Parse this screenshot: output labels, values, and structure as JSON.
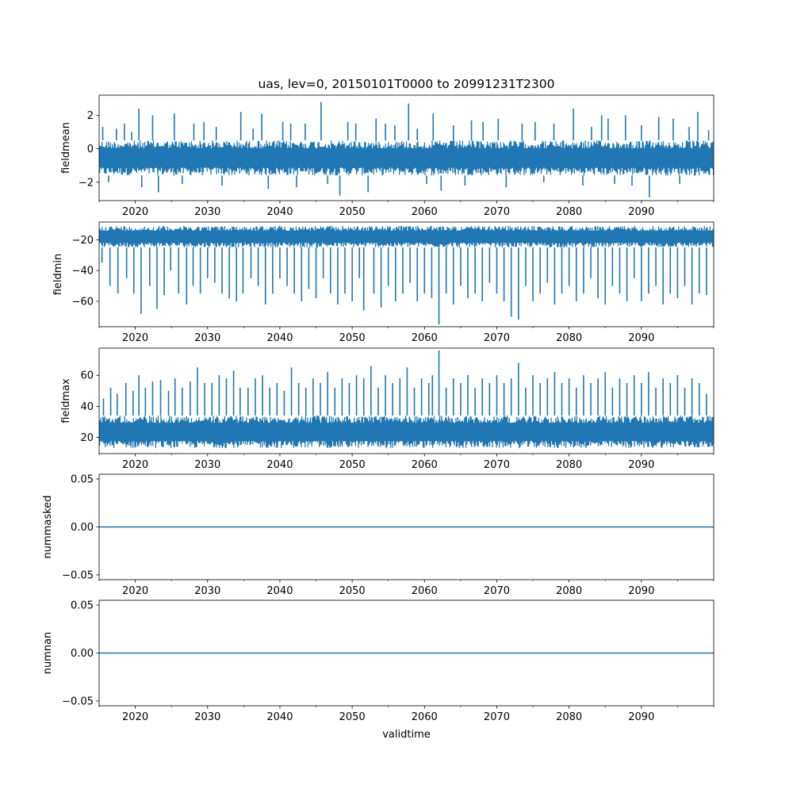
{
  "title": "uas, lev=0, 20150101T0000 to 20991231T2300",
  "xlabel": "validtime",
  "chart_data": [
    {
      "type": "line",
      "name": "fieldmean",
      "ylabel": "fieldmean",
      "xlim": [
        2015.0,
        2100.0
      ],
      "ylim": [
        -3.1,
        3.2
      ],
      "yticks": [
        -2,
        0,
        2
      ],
      "ytick_labels": [
        "−2",
        "0",
        "2"
      ],
      "line_color": "#1f77b4",
      "baseline_band": [
        -1.6,
        0.5
      ],
      "spikes": [
        {
          "x": 2015.5,
          "y": 1.3
        },
        {
          "x": 2016.3,
          "y": -2.0
        },
        {
          "x": 2017.4,
          "y": 1.2
        },
        {
          "x": 2018.5,
          "y": 1.5
        },
        {
          "x": 2019.5,
          "y": 1.0
        },
        {
          "x": 2020.5,
          "y": 2.4
        },
        {
          "x": 2020.9,
          "y": -2.3
        },
        {
          "x": 2022.4,
          "y": 2.0
        },
        {
          "x": 2023.2,
          "y": -2.6
        },
        {
          "x": 2025.4,
          "y": 2.1
        },
        {
          "x": 2026.5,
          "y": -2.1
        },
        {
          "x": 2028.1,
          "y": 1.5
        },
        {
          "x": 2029.5,
          "y": 1.6
        },
        {
          "x": 2031.2,
          "y": 1.3
        },
        {
          "x": 2032.0,
          "y": -2.2
        },
        {
          "x": 2034.6,
          "y": 2.2
        },
        {
          "x": 2036.3,
          "y": 1.2
        },
        {
          "x": 2037.5,
          "y": 2.1
        },
        {
          "x": 2038.4,
          "y": -2.4
        },
        {
          "x": 2040.4,
          "y": 1.6
        },
        {
          "x": 2041.5,
          "y": 1.5
        },
        {
          "x": 2042.3,
          "y": -2.3
        },
        {
          "x": 2043.5,
          "y": 1.5
        },
        {
          "x": 2045.7,
          "y": 2.8
        },
        {
          "x": 2046.6,
          "y": -2.1
        },
        {
          "x": 2048.3,
          "y": -2.8
        },
        {
          "x": 2049.4,
          "y": 1.6
        },
        {
          "x": 2050.5,
          "y": 1.5
        },
        {
          "x": 2052.2,
          "y": -2.6
        },
        {
          "x": 2053.3,
          "y": 1.8
        },
        {
          "x": 2054.6,
          "y": 1.5
        },
        {
          "x": 2055.9,
          "y": 1.4
        },
        {
          "x": 2057.8,
          "y": 2.7
        },
        {
          "x": 2059.0,
          "y": 1.2
        },
        {
          "x": 2060.3,
          "y": -2.1
        },
        {
          "x": 2061.2,
          "y": 2.1
        },
        {
          "x": 2062.3,
          "y": -2.5
        },
        {
          "x": 2064.0,
          "y": 1.4
        },
        {
          "x": 2065.6,
          "y": -2.2
        },
        {
          "x": 2066.5,
          "y": 1.7
        },
        {
          "x": 2068.1,
          "y": 1.6
        },
        {
          "x": 2070.2,
          "y": 1.8
        },
        {
          "x": 2071.3,
          "y": -2.3
        },
        {
          "x": 2073.5,
          "y": 1.5
        },
        {
          "x": 2075.3,
          "y": 1.6
        },
        {
          "x": 2076.5,
          "y": -2.0
        },
        {
          "x": 2077.9,
          "y": 1.5
        },
        {
          "x": 2080.6,
          "y": 2.4
        },
        {
          "x": 2081.9,
          "y": -2.2
        },
        {
          "x": 2083.1,
          "y": 1.3
        },
        {
          "x": 2084.5,
          "y": 2.0
        },
        {
          "x": 2085.4,
          "y": 1.8
        },
        {
          "x": 2086.3,
          "y": -2.1
        },
        {
          "x": 2087.8,
          "y": 2.0
        },
        {
          "x": 2088.7,
          "y": -2.2
        },
        {
          "x": 2090.0,
          "y": 1.4
        },
        {
          "x": 2091.1,
          "y": -2.9
        },
        {
          "x": 2092.4,
          "y": 1.9
        },
        {
          "x": 2094.4,
          "y": 1.8
        },
        {
          "x": 2095.3,
          "y": -2.1
        },
        {
          "x": 2096.6,
          "y": 1.3
        },
        {
          "x": 2097.8,
          "y": 2.2
        },
        {
          "x": 2099.3,
          "y": 1.1
        }
      ]
    },
    {
      "type": "line",
      "name": "fieldmin",
      "ylabel": "fieldmin",
      "xlim": [
        2015.0,
        2100.0
      ],
      "ylim": [
        -76.5,
        -8.5
      ],
      "yticks": [
        -60,
        -40,
        -20
      ],
      "ytick_labels": [
        "−60",
        "−40",
        "−20"
      ],
      "line_color": "#1f77b4",
      "baseline_band": [
        -25.0,
        -11.0
      ],
      "spikes": [
        {
          "x": 2015.4,
          "y": -35
        },
        {
          "x": 2016.5,
          "y": -50
        },
        {
          "x": 2017.6,
          "y": -55
        },
        {
          "x": 2018.8,
          "y": -45
        },
        {
          "x": 2019.8,
          "y": -55
        },
        {
          "x": 2020.8,
          "y": -68
        },
        {
          "x": 2022.0,
          "y": -50
        },
        {
          "x": 2023.0,
          "y": -65
        },
        {
          "x": 2024.0,
          "y": -56
        },
        {
          "x": 2024.9,
          "y": -40
        },
        {
          "x": 2026.0,
          "y": -55
        },
        {
          "x": 2027.1,
          "y": -62
        },
        {
          "x": 2028.0,
          "y": -50
        },
        {
          "x": 2029.0,
          "y": -55
        },
        {
          "x": 2030.0,
          "y": -45
        },
        {
          "x": 2031.0,
          "y": -48
        },
        {
          "x": 2032.0,
          "y": -55
        },
        {
          "x": 2033.0,
          "y": -58
        },
        {
          "x": 2034.0,
          "y": -60
        },
        {
          "x": 2034.9,
          "y": -55
        },
        {
          "x": 2036.0,
          "y": -45
        },
        {
          "x": 2037.0,
          "y": -50
        },
        {
          "x": 2038.0,
          "y": -62
        },
        {
          "x": 2039.0,
          "y": -55
        },
        {
          "x": 2040.0,
          "y": -45
        },
        {
          "x": 2041.0,
          "y": -50
        },
        {
          "x": 2042.0,
          "y": -55
        },
        {
          "x": 2043.0,
          "y": -60
        },
        {
          "x": 2044.0,
          "y": -52
        },
        {
          "x": 2045.0,
          "y": -58
        },
        {
          "x": 2046.0,
          "y": -45
        },
        {
          "x": 2047.0,
          "y": -55
        },
        {
          "x": 2048.0,
          "y": -62
        },
        {
          "x": 2049.0,
          "y": -55
        },
        {
          "x": 2050.0,
          "y": -60
        },
        {
          "x": 2051.0,
          "y": -45
        },
        {
          "x": 2051.6,
          "y": -66
        },
        {
          "x": 2053.0,
          "y": -55
        },
        {
          "x": 2054.0,
          "y": -64
        },
        {
          "x": 2055.0,
          "y": -50
        },
        {
          "x": 2056.0,
          "y": -60
        },
        {
          "x": 2057.0,
          "y": -55
        },
        {
          "x": 2058.0,
          "y": -48
        },
        {
          "x": 2059.0,
          "y": -60
        },
        {
          "x": 2060.0,
          "y": -55
        },
        {
          "x": 2061.0,
          "y": -58
        },
        {
          "x": 2062.0,
          "y": -75
        },
        {
          "x": 2063.0,
          "y": -55
        },
        {
          "x": 2064.0,
          "y": -62
        },
        {
          "x": 2065.0,
          "y": -50
        },
        {
          "x": 2066.0,
          "y": -58
        },
        {
          "x": 2067.0,
          "y": -55
        },
        {
          "x": 2068.0,
          "y": -60
        },
        {
          "x": 2069.0,
          "y": -48
        },
        {
          "x": 2070.0,
          "y": -55
        },
        {
          "x": 2071.0,
          "y": -60
        },
        {
          "x": 2072.0,
          "y": -70
        },
        {
          "x": 2073.0,
          "y": -72
        },
        {
          "x": 2074.0,
          "y": -50
        },
        {
          "x": 2075.0,
          "y": -60
        },
        {
          "x": 2076.0,
          "y": -55
        },
        {
          "x": 2077.0,
          "y": -48
        },
        {
          "x": 2078.0,
          "y": -62
        },
        {
          "x": 2079.0,
          "y": -55
        },
        {
          "x": 2080.0,
          "y": -50
        },
        {
          "x": 2081.0,
          "y": -60
        },
        {
          "x": 2082.0,
          "y": -55
        },
        {
          "x": 2083.0,
          "y": -45
        },
        {
          "x": 2084.0,
          "y": -58
        },
        {
          "x": 2085.0,
          "y": -62
        },
        {
          "x": 2086.0,
          "y": -50
        },
        {
          "x": 2087.0,
          "y": -55
        },
        {
          "x": 2088.0,
          "y": -60
        },
        {
          "x": 2089.0,
          "y": -45
        },
        {
          "x": 2090.0,
          "y": -60
        },
        {
          "x": 2091.0,
          "y": -55
        },
        {
          "x": 2092.0,
          "y": -50
        },
        {
          "x": 2093.0,
          "y": -62
        },
        {
          "x": 2094.0,
          "y": -55
        },
        {
          "x": 2095.0,
          "y": -58
        },
        {
          "x": 2096.0,
          "y": -50
        },
        {
          "x": 2097.0,
          "y": -62
        },
        {
          "x": 2098.0,
          "y": -55
        },
        {
          "x": 2099.0,
          "y": -56
        }
      ]
    },
    {
      "type": "line",
      "name": "fieldmax",
      "ylabel": "fieldmax",
      "xlim": [
        2015.0,
        2100.0
      ],
      "ylim": [
        9.5,
        77.5
      ],
      "yticks": [
        20,
        40,
        60
      ],
      "ytick_labels": [
        "20",
        "40",
        "60"
      ],
      "line_color": "#1f77b4",
      "baseline_band": [
        13.0,
        34.0
      ],
      "spikes": [
        {
          "x": 2015.6,
          "y": 45
        },
        {
          "x": 2016.6,
          "y": 52
        },
        {
          "x": 2017.5,
          "y": 48
        },
        {
          "x": 2018.7,
          "y": 55
        },
        {
          "x": 2019.7,
          "y": 50
        },
        {
          "x": 2020.5,
          "y": 60
        },
        {
          "x": 2021.4,
          "y": 52
        },
        {
          "x": 2022.4,
          "y": 56
        },
        {
          "x": 2023.5,
          "y": 57
        },
        {
          "x": 2024.6,
          "y": 50
        },
        {
          "x": 2025.5,
          "y": 58
        },
        {
          "x": 2026.5,
          "y": 52
        },
        {
          "x": 2027.6,
          "y": 56
        },
        {
          "x": 2028.6,
          "y": 65
        },
        {
          "x": 2029.6,
          "y": 55
        },
        {
          "x": 2030.6,
          "y": 55
        },
        {
          "x": 2031.6,
          "y": 60
        },
        {
          "x": 2032.6,
          "y": 58
        },
        {
          "x": 2033.6,
          "y": 63
        },
        {
          "x": 2034.5,
          "y": 52
        },
        {
          "x": 2035.6,
          "y": 52
        },
        {
          "x": 2036.6,
          "y": 58
        },
        {
          "x": 2037.6,
          "y": 60
        },
        {
          "x": 2038.6,
          "y": 52
        },
        {
          "x": 2039.6,
          "y": 55
        },
        {
          "x": 2040.6,
          "y": 50
        },
        {
          "x": 2041.6,
          "y": 65
        },
        {
          "x": 2042.6,
          "y": 55
        },
        {
          "x": 2043.6,
          "y": 52
        },
        {
          "x": 2044.6,
          "y": 58
        },
        {
          "x": 2045.6,
          "y": 55
        },
        {
          "x": 2046.6,
          "y": 62
        },
        {
          "x": 2047.6,
          "y": 52
        },
        {
          "x": 2048.6,
          "y": 58
        },
        {
          "x": 2049.6,
          "y": 55
        },
        {
          "x": 2050.6,
          "y": 60
        },
        {
          "x": 2051.6,
          "y": 58
        },
        {
          "x": 2052.6,
          "y": 66
        },
        {
          "x": 2053.6,
          "y": 52
        },
        {
          "x": 2054.6,
          "y": 60
        },
        {
          "x": 2055.6,
          "y": 55
        },
        {
          "x": 2056.6,
          "y": 58
        },
        {
          "x": 2057.6,
          "y": 65
        },
        {
          "x": 2058.6,
          "y": 52
        },
        {
          "x": 2059.6,
          "y": 58
        },
        {
          "x": 2060.6,
          "y": 55
        },
        {
          "x": 2061.1,
          "y": 60
        },
        {
          "x": 2062.0,
          "y": 76
        },
        {
          "x": 2063.0,
          "y": 52
        },
        {
          "x": 2064.0,
          "y": 58
        },
        {
          "x": 2065.0,
          "y": 55
        },
        {
          "x": 2066.0,
          "y": 60
        },
        {
          "x": 2067.0,
          "y": 52
        },
        {
          "x": 2068.0,
          "y": 58
        },
        {
          "x": 2069.0,
          "y": 55
        },
        {
          "x": 2070.0,
          "y": 60
        },
        {
          "x": 2071.0,
          "y": 55
        },
        {
          "x": 2072.0,
          "y": 58
        },
        {
          "x": 2073.0,
          "y": 68
        },
        {
          "x": 2074.0,
          "y": 52
        },
        {
          "x": 2075.0,
          "y": 60
        },
        {
          "x": 2076.0,
          "y": 55
        },
        {
          "x": 2077.0,
          "y": 58
        },
        {
          "x": 2078.0,
          "y": 62
        },
        {
          "x": 2079.0,
          "y": 55
        },
        {
          "x": 2080.0,
          "y": 58
        },
        {
          "x": 2081.0,
          "y": 52
        },
        {
          "x": 2082.0,
          "y": 60
        },
        {
          "x": 2083.0,
          "y": 55
        },
        {
          "x": 2084.0,
          "y": 58
        },
        {
          "x": 2085.0,
          "y": 62
        },
        {
          "x": 2086.0,
          "y": 52
        },
        {
          "x": 2087.0,
          "y": 58
        },
        {
          "x": 2088.0,
          "y": 55
        },
        {
          "x": 2089.0,
          "y": 60
        },
        {
          "x": 2090.0,
          "y": 55
        },
        {
          "x": 2091.0,
          "y": 62
        },
        {
          "x": 2092.0,
          "y": 52
        },
        {
          "x": 2093.0,
          "y": 58
        },
        {
          "x": 2094.0,
          "y": 55
        },
        {
          "x": 2095.0,
          "y": 60
        },
        {
          "x": 2096.0,
          "y": 52
        },
        {
          "x": 2097.0,
          "y": 58
        },
        {
          "x": 2098.0,
          "y": 55
        },
        {
          "x": 2099.0,
          "y": 48
        }
      ]
    },
    {
      "type": "line",
      "name": "nummasked",
      "ylabel": "nummasked",
      "xlim": [
        2015.0,
        2100.0
      ],
      "ylim": [
        -0.055,
        0.055
      ],
      "yticks": [
        -0.05,
        0.0,
        0.05
      ],
      "ytick_labels": [
        "−0.05",
        "0.00",
        "0.05"
      ],
      "line_color": "#1f77b4",
      "x": [
        2015.0,
        2100.0
      ],
      "y": [
        0.0,
        0.0
      ]
    },
    {
      "type": "line",
      "name": "numnan",
      "ylabel": "numnan",
      "xlim": [
        2015.0,
        2100.0
      ],
      "ylim": [
        -0.055,
        0.055
      ],
      "yticks": [
        -0.05,
        0.0,
        0.05
      ],
      "ytick_labels": [
        "−0.05",
        "0.00",
        "0.05"
      ],
      "line_color": "#1f77b4",
      "x": [
        2015.0,
        2100.0
      ],
      "y": [
        0.0,
        0.0
      ]
    }
  ],
  "xticks": [
    2020,
    2030,
    2040,
    2050,
    2060,
    2070,
    2080,
    2090
  ],
  "xtick_labels": [
    "2020",
    "2030",
    "2040",
    "2050",
    "2060",
    "2070",
    "2080",
    "2090"
  ],
  "minor_xticks": [
    2015,
    2025,
    2035,
    2045,
    2055,
    2065,
    2075,
    2085,
    2095,
    2100
  ]
}
